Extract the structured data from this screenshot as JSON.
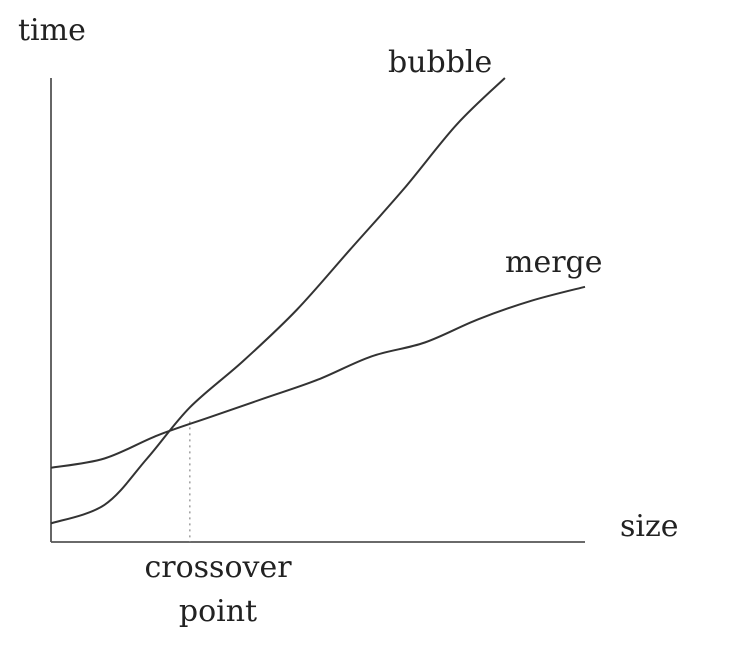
{
  "chart_data": {
    "type": "line",
    "xlabel": "size",
    "ylabel": "time",
    "xlim": [
      0,
      10
    ],
    "ylim": [
      0,
      10
    ],
    "grid": false,
    "legend": "none",
    "series": [
      {
        "name": "bubble",
        "color": "#333333",
        "x": [
          0,
          1.0,
          1.8,
          2.6,
          3.6,
          4.6,
          5.6,
          6.6,
          7.6,
          8.5
        ],
        "y": [
          0.4,
          0.8,
          1.8,
          2.9,
          3.9,
          5.0,
          6.3,
          7.6,
          9.0,
          10.0
        ]
      },
      {
        "name": "merge",
        "color": "#333333",
        "x": [
          0,
          1.0,
          2.0,
          3.0,
          4.0,
          5.0,
          6.0,
          7.0,
          8.0,
          9.0,
          10.0
        ],
        "y": [
          1.6,
          1.8,
          2.3,
          2.7,
          3.1,
          3.5,
          4.0,
          4.3,
          4.8,
          5.2,
          5.5
        ]
      }
    ],
    "annotations": [
      {
        "text_lines": [
          "crossover",
          "point"
        ],
        "x": 2.6,
        "y": 2.6,
        "style": "dotted-vertical"
      }
    ]
  }
}
